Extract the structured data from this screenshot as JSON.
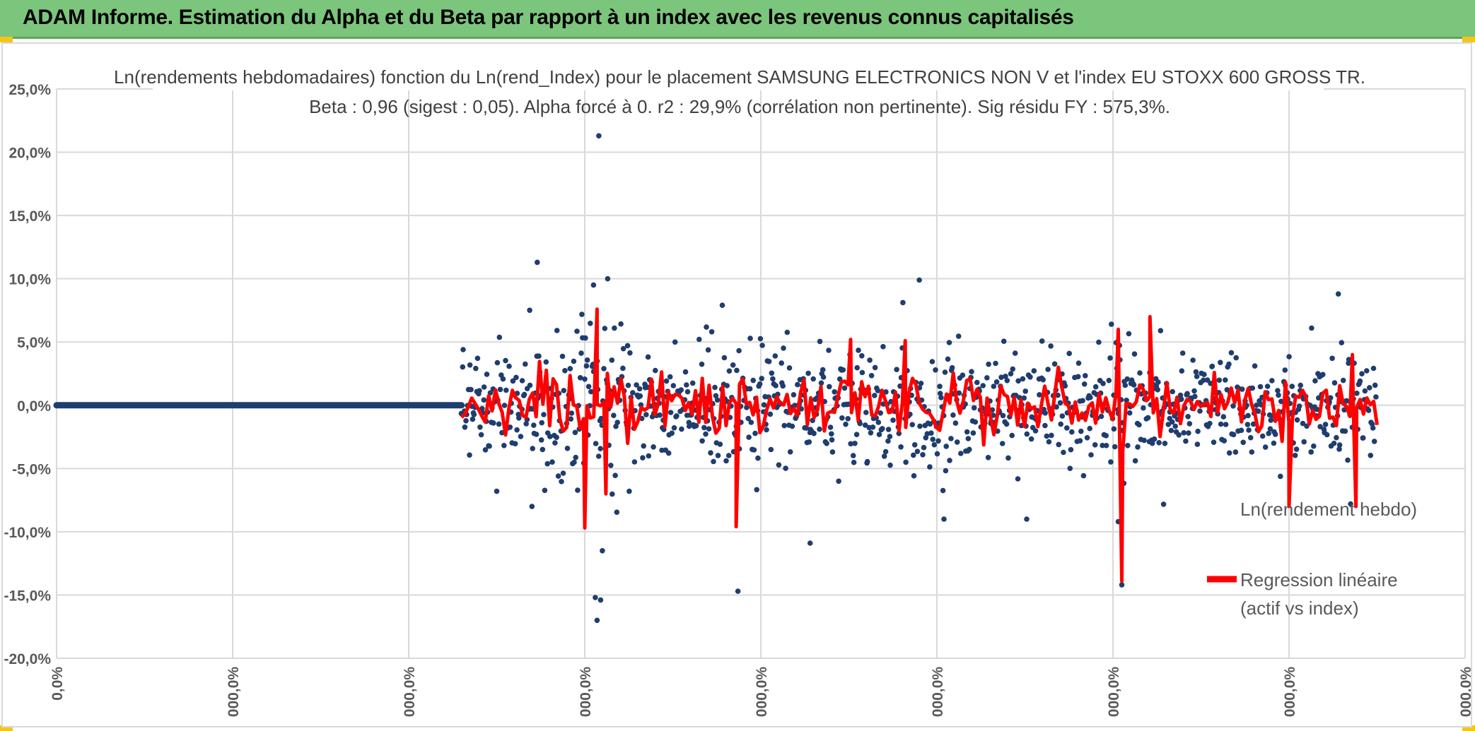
{
  "header": {
    "title": "ADAM Informe. Estimation du Alpha et du Beta par rapport à un index avec les revenus connus capitalisés"
  },
  "colors": {
    "header_bg": "#7cc57c",
    "scatter": "#1f3d6e",
    "regression": "#ff0000",
    "grid": "#d9d9d9",
    "axis_text": "#595959"
  },
  "chart_data": {
    "type": "scatter",
    "title_line1": "Ln(rendements hebdomadaires) fonction du Ln(rend_Index) pour le placement SAMSUNG ELECTRONICS NON V et l'index EU STOXX 600 GROSS TR.",
    "title_line2": "Beta : 0,96 (sigest : 0,05). Alpha forcé à 0. r2 : 29,9% (corrélation non pertinente). Sig résidu FY : 575,3%.",
    "y_ticks": [
      "25,0%",
      "20,0%",
      "15,0%",
      "10,0%",
      "5,0%",
      "0,0%",
      "-5,0%",
      "-10,0%",
      "-15,0%",
      "-20,0%"
    ],
    "ylim": [
      -20,
      25
    ],
    "x_ticks": [
      "0,0%",
      "000,0%",
      "000,0%",
      "000,0%",
      "000,0%",
      "000,0%",
      "000,0%",
      "000,0%",
      "000,0%"
    ],
    "xlim": [
      0,
      8
    ],
    "data_start_x": 2.3,
    "data_end_x": 7.5,
    "legend": {
      "scatter_label": "Ln(rendement hebdo)",
      "regression_label_line1": "Regression linéaire",
      "regression_label_line2": "(actif vs index)"
    },
    "outliers": [
      {
        "x": 3.08,
        "y": 21.3
      },
      {
        "x": 2.73,
        "y": 11.3
      },
      {
        "x": 3.13,
        "y": 10.0
      },
      {
        "x": 3.05,
        "y": 9.5
      },
      {
        "x": 4.9,
        "y": 9.9
      },
      {
        "x": 7.28,
        "y": 8.8
      },
      {
        "x": 2.5,
        "y": -6.8
      },
      {
        "x": 2.7,
        "y": -8.0
      },
      {
        "x": 3.06,
        "y": -15.2
      },
      {
        "x": 3.09,
        "y": -15.4
      },
      {
        "x": 3.07,
        "y": -17.0
      },
      {
        "x": 3.1,
        "y": -11.5
      },
      {
        "x": 3.87,
        "y": -14.7
      },
      {
        "x": 4.28,
        "y": -10.9
      },
      {
        "x": 5.04,
        "y": -9.0
      },
      {
        "x": 5.51,
        "y": -9.0
      },
      {
        "x": 6.05,
        "y": -14.2
      },
      {
        "x": 6.03,
        "y": -9.2
      },
      {
        "x": 7.35,
        "y": -7.8
      }
    ],
    "regression_spikes": [
      {
        "x": 3.0,
        "y": -9.7
      },
      {
        "x": 3.07,
        "y": 7.6
      },
      {
        "x": 3.12,
        "y": -7.0
      },
      {
        "x": 3.86,
        "y": -9.6
      },
      {
        "x": 4.82,
        "y": 5.1
      },
      {
        "x": 6.05,
        "y": -13.9
      },
      {
        "x": 6.03,
        "y": 6.0
      },
      {
        "x": 6.21,
        "y": 7.0
      },
      {
        "x": 7.0,
        "y": -8.0
      },
      {
        "x": 7.38,
        "y": -8.0
      },
      {
        "x": 7.36,
        "y": 4.0
      },
      {
        "x": 4.51,
        "y": 5.2
      }
    ],
    "scatter_count": 1080,
    "regression_count": 270,
    "random_seed": 7
  }
}
